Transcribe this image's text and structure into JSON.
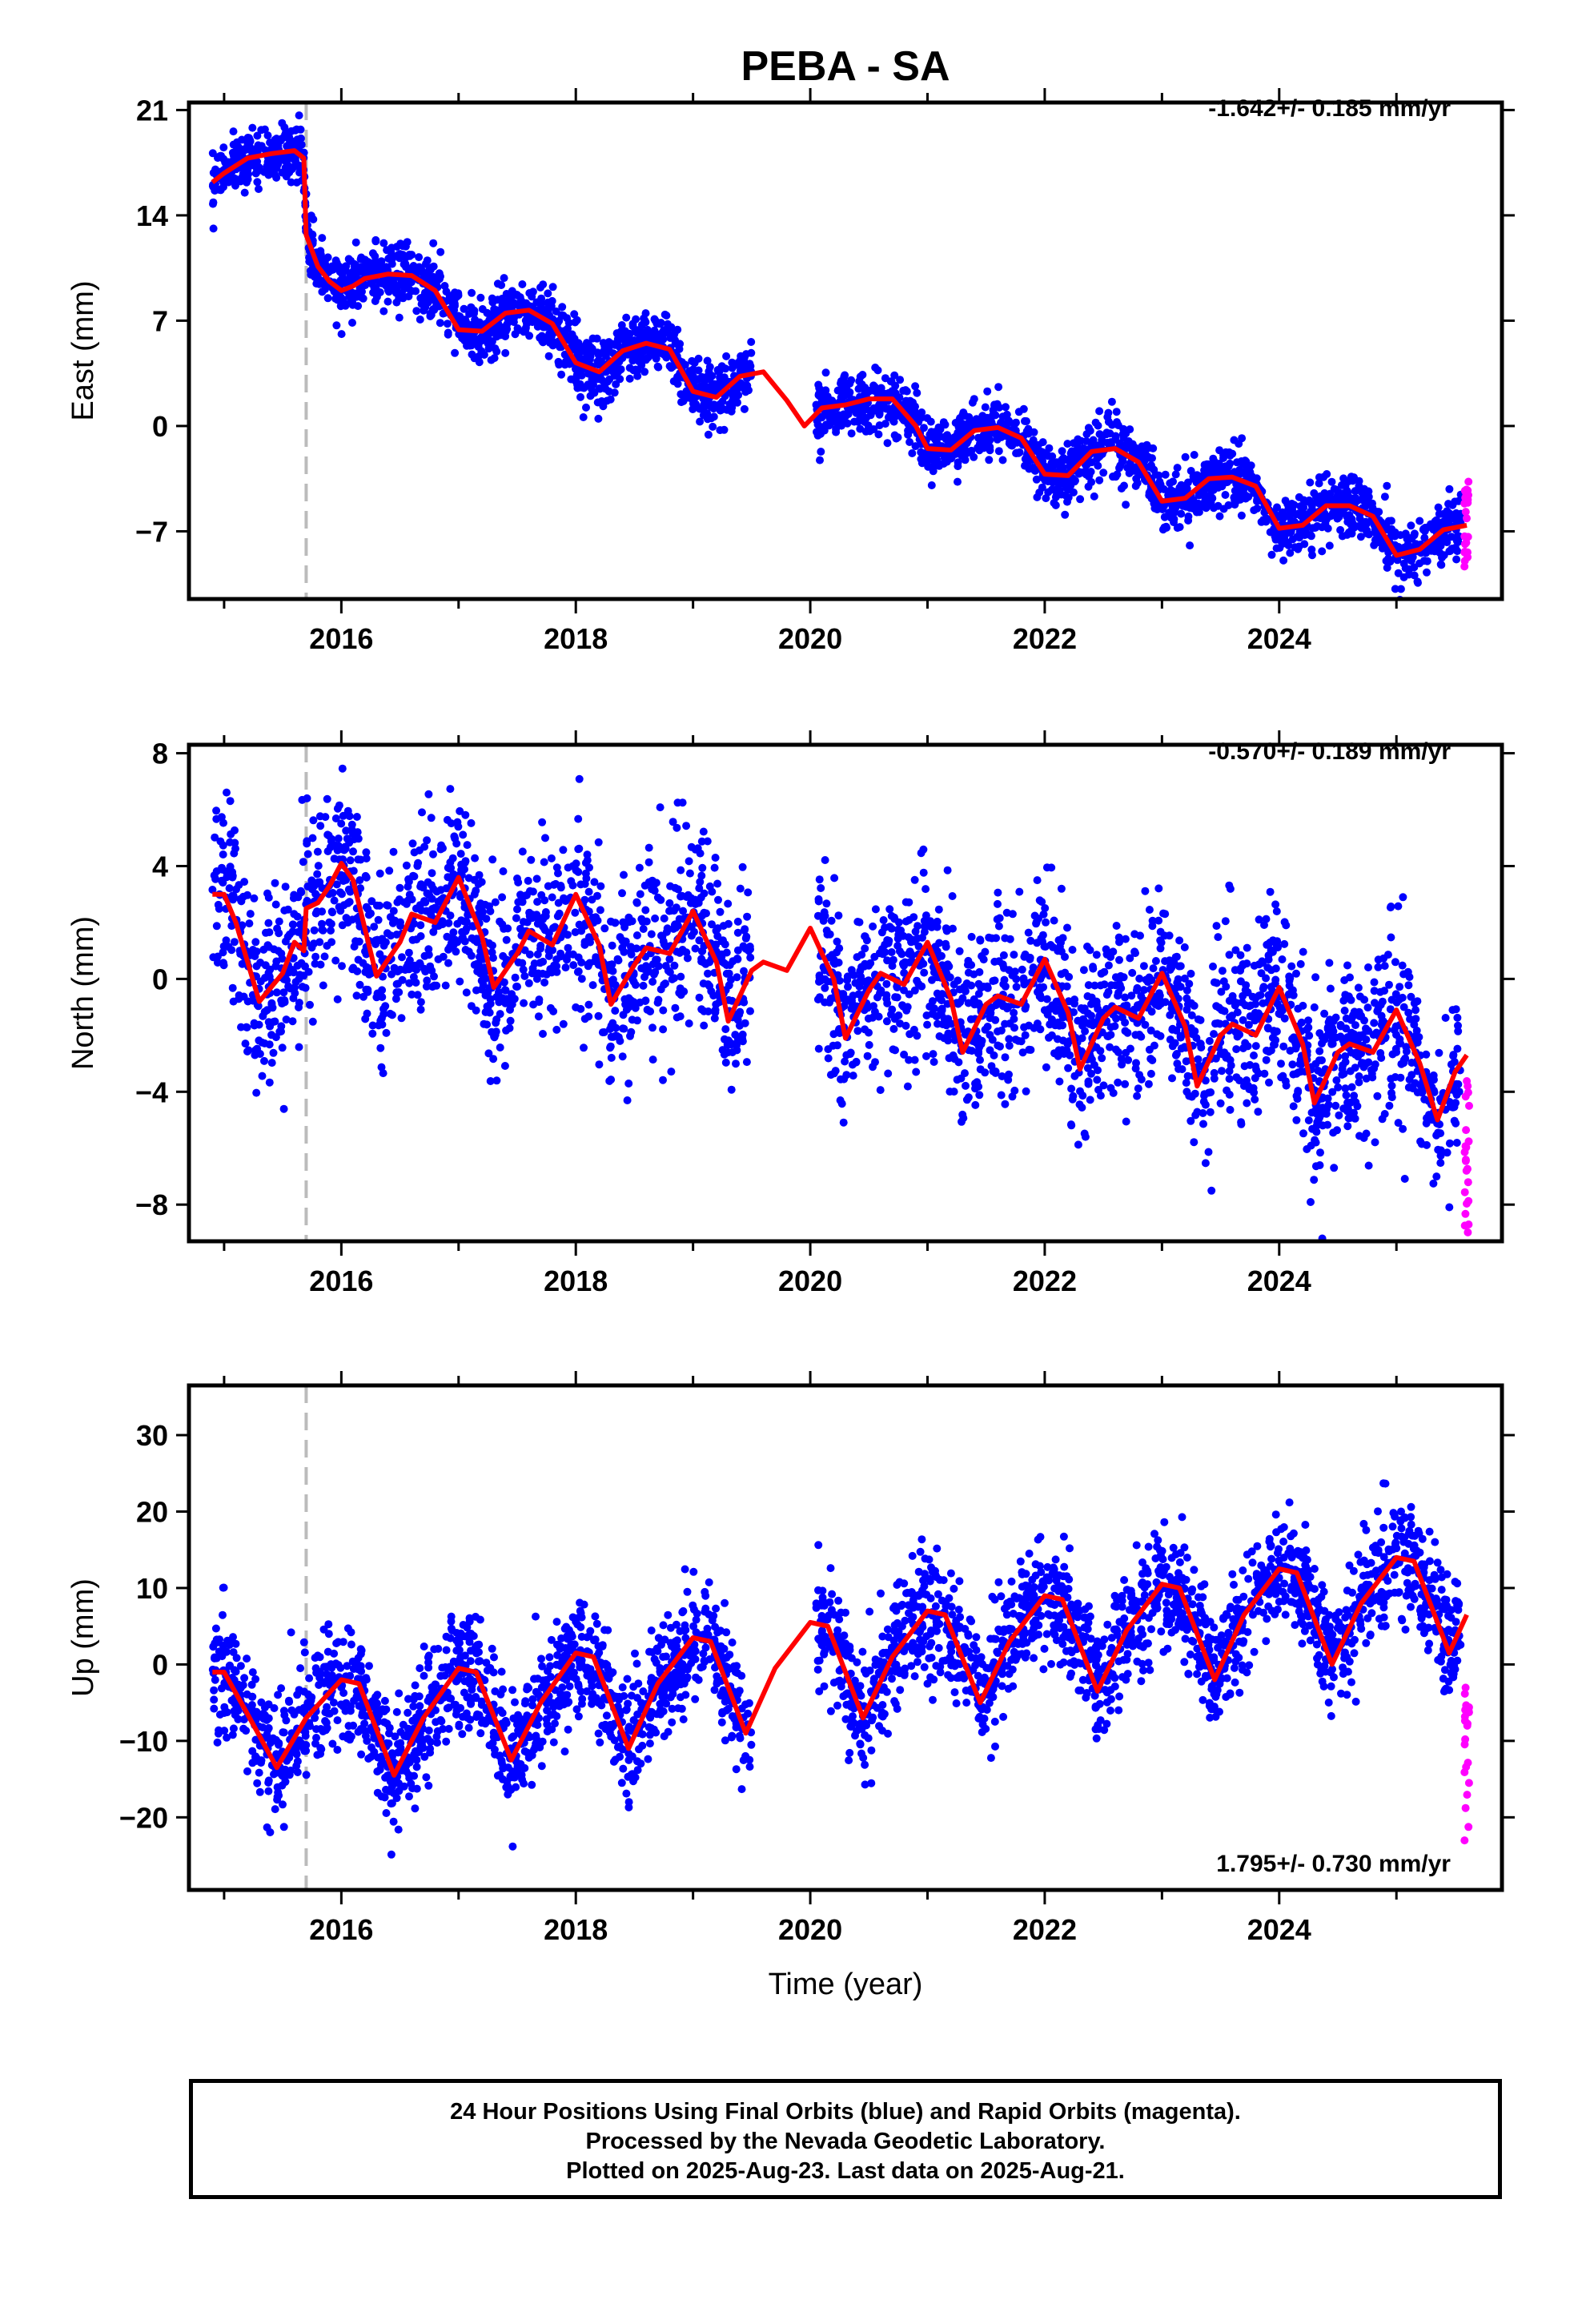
{
  "colors": {
    "final": "#0000ff",
    "rapid": "#ff00ff",
    "model": "#ff0000",
    "step": "#bbbbbb"
  },
  "chart_data": [
    {
      "type": "scatter",
      "title": "PEBA - SA",
      "ylabel": "East (mm)",
      "xlabel": "",
      "rate_text": "-1.642+/- 0.185 mm/yr",
      "xlim": [
        2014.7,
        2025.9
      ],
      "ylim": [
        -11.5,
        21.5
      ],
      "yticks": [
        21,
        14,
        7,
        0,
        -7
      ],
      "xticks": [
        2016,
        2018,
        2020,
        2022,
        2024
      ],
      "step_epoch": 2015.7,
      "model_points": [
        [
          2014.9,
          16.2
        ],
        [
          2015.0,
          16.8
        ],
        [
          2015.2,
          17.8
        ],
        [
          2015.4,
          18.1
        ],
        [
          2015.6,
          18.3
        ],
        [
          2015.68,
          17.8
        ],
        [
          2015.7,
          12.7
        ],
        [
          2015.8,
          10.6
        ],
        [
          2015.9,
          9.6
        ],
        [
          2016.0,
          9.0
        ],
        [
          2016.1,
          9.3
        ],
        [
          2016.2,
          9.8
        ],
        [
          2016.4,
          10.1
        ],
        [
          2016.6,
          10.0
        ],
        [
          2016.8,
          9.0
        ],
        [
          2017.0,
          6.4
        ],
        [
          2017.2,
          6.3
        ],
        [
          2017.4,
          7.5
        ],
        [
          2017.6,
          7.7
        ],
        [
          2017.8,
          6.8
        ],
        [
          2018.0,
          4.2
        ],
        [
          2018.2,
          3.6
        ],
        [
          2018.4,
          5.0
        ],
        [
          2018.6,
          5.5
        ],
        [
          2018.8,
          5.1
        ],
        [
          2019.0,
          2.3
        ],
        [
          2019.2,
          1.9
        ],
        [
          2019.4,
          3.3
        ],
        [
          2019.6,
          3.6
        ],
        [
          2019.8,
          1.7
        ],
        [
          2019.95,
          0.0
        ],
        [
          2020.1,
          1.2
        ],
        [
          2020.3,
          1.4
        ],
        [
          2020.5,
          1.8
        ],
        [
          2020.7,
          1.8
        ],
        [
          2020.9,
          0.0
        ],
        [
          2021.0,
          -1.5
        ],
        [
          2021.2,
          -1.6
        ],
        [
          2021.4,
          -0.3
        ],
        [
          2021.6,
          -0.1
        ],
        [
          2021.8,
          -0.8
        ],
        [
          2022.0,
          -3.2
        ],
        [
          2022.2,
          -3.3
        ],
        [
          2022.4,
          -1.7
        ],
        [
          2022.6,
          -1.5
        ],
        [
          2022.8,
          -2.4
        ],
        [
          2023.0,
          -5.0
        ],
        [
          2023.2,
          -4.8
        ],
        [
          2023.4,
          -3.5
        ],
        [
          2023.6,
          -3.4
        ],
        [
          2023.8,
          -4.0
        ],
        [
          2024.0,
          -6.8
        ],
        [
          2024.2,
          -6.6
        ],
        [
          2024.4,
          -5.3
        ],
        [
          2024.6,
          -5.3
        ],
        [
          2024.8,
          -6.0
        ],
        [
          2025.0,
          -8.6
        ],
        [
          2025.2,
          -8.2
        ],
        [
          2025.4,
          -6.9
        ],
        [
          2025.6,
          -6.6
        ]
      ],
      "final_segments": [
        [
          2014.9,
          2015.7,
          17.0,
          1.7,
          0.9
        ],
        [
          2015.7,
          2016.2,
          9.8,
          1.6,
          1.0
        ],
        [
          2016.2,
          2016.7,
          10.0,
          1.6,
          1.0
        ],
        [
          2016.7,
          2017.5,
          7.0,
          1.6,
          1.0
        ],
        [
          2017.5,
          2018.3,
          5.0,
          1.6,
          1.2
        ],
        [
          2018.3,
          2019.5,
          3.8,
          1.6,
          1.0
        ],
        [
          2020.05,
          2021.0,
          0.4,
          1.6,
          1.0
        ],
        [
          2021.0,
          2022.0,
          -1.0,
          1.6,
          1.0
        ],
        [
          2022.0,
          2023.0,
          -2.5,
          1.6,
          1.0
        ],
        [
          2023.0,
          2024.0,
          -4.2,
          1.6,
          1.0
        ],
        [
          2024.0,
          2025.55,
          -6.3,
          1.6,
          1.0
        ]
      ],
      "rapid": {
        "x_start": 2025.58,
        "x_end": 2025.62,
        "y_min": -9.5,
        "y_max": -3.5
      }
    },
    {
      "type": "scatter",
      "title": "",
      "ylabel": "North (mm)",
      "xlabel": "",
      "rate_text": "-0.570+/- 0.189 mm/yr",
      "xlim": [
        2014.7,
        2025.9
      ],
      "ylim": [
        -9.3,
        8.3
      ],
      "yticks": [
        8,
        4,
        0,
        -4,
        -8
      ],
      "xticks": [
        2016,
        2018,
        2020,
        2022,
        2024
      ],
      "step_epoch": 2015.7,
      "model_points": [
        [
          2014.9,
          3.0
        ],
        [
          2015.0,
          3.0
        ],
        [
          2015.1,
          2.0
        ],
        [
          2015.3,
          -0.8
        ],
        [
          2015.5,
          0.2
        ],
        [
          2015.6,
          1.3
        ],
        [
          2015.68,
          1.0
        ],
        [
          2015.7,
          2.5
        ],
        [
          2015.8,
          2.7
        ],
        [
          2015.9,
          3.3
        ],
        [
          2016.0,
          4.1
        ],
        [
          2016.1,
          3.5
        ],
        [
          2016.3,
          0.1
        ],
        [
          2016.5,
          1.3
        ],
        [
          2016.6,
          2.3
        ],
        [
          2016.8,
          2.0
        ],
        [
          2017.0,
          3.6
        ],
        [
          2017.2,
          1.5
        ],
        [
          2017.3,
          -0.3
        ],
        [
          2017.5,
          0.9
        ],
        [
          2017.6,
          1.7
        ],
        [
          2017.8,
          1.2
        ],
        [
          2018.0,
          3.0
        ],
        [
          2018.2,
          1.2
        ],
        [
          2018.3,
          -0.9
        ],
        [
          2018.5,
          0.5
        ],
        [
          2018.6,
          1.1
        ],
        [
          2018.8,
          0.9
        ],
        [
          2019.0,
          2.4
        ],
        [
          2019.2,
          0.6
        ],
        [
          2019.3,
          -1.5
        ],
        [
          2019.5,
          0.3
        ],
        [
          2019.6,
          0.6
        ],
        [
          2019.8,
          0.3
        ],
        [
          2020.0,
          1.8
        ],
        [
          2020.2,
          0.0
        ],
        [
          2020.3,
          -2.1
        ],
        [
          2020.5,
          -0.4
        ],
        [
          2020.6,
          0.2
        ],
        [
          2020.8,
          -0.2
        ],
        [
          2021.0,
          1.3
        ],
        [
          2021.2,
          -0.7
        ],
        [
          2021.3,
          -2.6
        ],
        [
          2021.5,
          -0.9
        ],
        [
          2021.6,
          -0.6
        ],
        [
          2021.8,
          -0.9
        ],
        [
          2022.0,
          0.7
        ],
        [
          2022.2,
          -1.2
        ],
        [
          2022.3,
          -3.2
        ],
        [
          2022.5,
          -1.4
        ],
        [
          2022.6,
          -1.0
        ],
        [
          2022.8,
          -1.4
        ],
        [
          2023.0,
          0.2
        ],
        [
          2023.2,
          -1.7
        ],
        [
          2023.3,
          -3.8
        ],
        [
          2023.5,
          -2.0
        ],
        [
          2023.6,
          -1.6
        ],
        [
          2023.8,
          -2.0
        ],
        [
          2024.0,
          -0.3
        ],
        [
          2024.2,
          -2.3
        ],
        [
          2024.3,
          -4.4
        ],
        [
          2024.5,
          -2.6
        ],
        [
          2024.6,
          -2.3
        ],
        [
          2024.8,
          -2.6
        ],
        [
          2025.0,
          -1.1
        ],
        [
          2025.2,
          -3.0
        ],
        [
          2025.35,
          -5.0
        ],
        [
          2025.5,
          -3.3
        ],
        [
          2025.6,
          -2.7
        ]
      ],
      "final_segments": [
        [
          2014.9,
          2015.7,
          0.8,
          1.4,
          1.6
        ],
        [
          2015.7,
          2017.0,
          2.0,
          1.5,
          1.6
        ],
        [
          2017.0,
          2018.0,
          1.0,
          1.4,
          1.6
        ],
        [
          2018.0,
          2019.5,
          0.5,
          1.4,
          1.6
        ],
        [
          2020.05,
          2021.0,
          -0.4,
          1.5,
          1.6
        ],
        [
          2021.0,
          2022.0,
          -1.0,
          1.5,
          1.6
        ],
        [
          2022.0,
          2023.0,
          -1.8,
          1.6,
          1.6
        ],
        [
          2023.0,
          2024.0,
          -2.0,
          1.5,
          1.6
        ],
        [
          2024.0,
          2025.55,
          -2.7,
          1.6,
          1.6
        ]
      ],
      "rapid": {
        "x_start": 2025.58,
        "x_end": 2025.62,
        "y_min": -9.0,
        "y_max": -3.5
      }
    },
    {
      "type": "scatter",
      "title": "",
      "ylabel": "Up (mm)",
      "xlabel": "Time (year)",
      "rate_text": "1.795+/- 0.730 mm/yr",
      "xlim": [
        2014.7,
        2025.9
      ],
      "ylim": [
        -29.5,
        36.5
      ],
      "yticks": [
        30,
        20,
        10,
        0,
        -10,
        -20
      ],
      "xticks": [
        2016,
        2018,
        2020,
        2022,
        2024
      ],
      "step_epoch": 2015.7,
      "model_points": [
        [
          2014.9,
          -1.0
        ],
        [
          2015.0,
          -1.0
        ],
        [
          2015.2,
          -6.5
        ],
        [
          2015.45,
          -13.5
        ],
        [
          2015.7,
          -7.0
        ],
        [
          2016.0,
          -2.0
        ],
        [
          2016.15,
          -2.5
        ],
        [
          2016.45,
          -14.5
        ],
        [
          2016.7,
          -7.0
        ],
        [
          2017.0,
          -0.5
        ],
        [
          2017.15,
          -1.0
        ],
        [
          2017.45,
          -12.5
        ],
        [
          2017.7,
          -5.0
        ],
        [
          2018.0,
          1.5
        ],
        [
          2018.15,
          1.0
        ],
        [
          2018.45,
          -11.0
        ],
        [
          2018.7,
          -2.5
        ],
        [
          2019.0,
          3.5
        ],
        [
          2019.15,
          3.0
        ],
        [
          2019.45,
          -9.0
        ],
        [
          2019.7,
          -0.5
        ],
        [
          2020.0,
          5.5
        ],
        [
          2020.15,
          5.0
        ],
        [
          2020.45,
          -7.0
        ],
        [
          2020.7,
          1.0
        ],
        [
          2021.0,
          7.0
        ],
        [
          2021.15,
          6.5
        ],
        [
          2021.45,
          -5.0
        ],
        [
          2021.7,
          3.0
        ],
        [
          2022.0,
          9.0
        ],
        [
          2022.15,
          8.5
        ],
        [
          2022.45,
          -3.5
        ],
        [
          2022.7,
          4.5
        ],
        [
          2023.0,
          10.5
        ],
        [
          2023.15,
          10.0
        ],
        [
          2023.45,
          -2.0
        ],
        [
          2023.7,
          6.5
        ],
        [
          2024.0,
          12.5
        ],
        [
          2024.15,
          12.0
        ],
        [
          2024.45,
          0.0
        ],
        [
          2024.7,
          8.0
        ],
        [
          2025.0,
          14.0
        ],
        [
          2025.15,
          13.5
        ],
        [
          2025.45,
          1.5
        ],
        [
          2025.6,
          6.5
        ]
      ],
      "final_segments": [
        [
          2014.9,
          2015.7,
          -7.0,
          6.0,
          3.8
        ],
        [
          2015.7,
          2016.7,
          -6.0,
          6.5,
          3.8
        ],
        [
          2016.7,
          2017.7,
          -5.0,
          6.5,
          3.8
        ],
        [
          2017.7,
          2018.7,
          -4.0,
          6.5,
          3.8
        ],
        [
          2018.7,
          2019.5,
          -2.5,
          6.5,
          3.8
        ],
        [
          2020.05,
          2021.0,
          2.0,
          6.5,
          3.8
        ],
        [
          2021.0,
          2022.0,
          3.0,
          6.5,
          3.8
        ],
        [
          2022.0,
          2023.0,
          5.0,
          6.5,
          3.8
        ],
        [
          2023.0,
          2024.0,
          7.0,
          6.5,
          3.8
        ],
        [
          2024.0,
          2025.55,
          8.0,
          6.5,
          3.8
        ]
      ],
      "rapid": {
        "x_start": 2025.58,
        "x_end": 2025.62,
        "y_min": -26.0,
        "y_max": 1.5
      }
    }
  ],
  "footer": {
    "line1": "24 Hour Positions Using Final Orbits (blue) and Rapid Orbits (magenta).",
    "line2": "Processed by the Nevada Geodetic Laboratory.",
    "line3": "Plotted on 2025-Aug-23. Last data on 2025-Aug-21."
  }
}
